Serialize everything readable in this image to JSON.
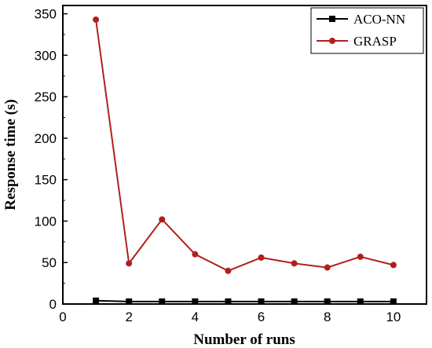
{
  "chart_data": {
    "type": "line",
    "xlabel": "Number of runs",
    "ylabel": "Response time (s)",
    "xlim": [
      0,
      11
    ],
    "ylim": [
      0,
      360
    ],
    "xticks": [
      0,
      2,
      4,
      6,
      8,
      10
    ],
    "yticks": [
      0,
      50,
      100,
      150,
      200,
      250,
      300,
      350
    ],
    "grid": false,
    "legend_position": "top-right",
    "x": [
      1,
      2,
      3,
      4,
      5,
      6,
      7,
      8,
      9,
      10
    ],
    "series": [
      {
        "name": "ACO-NN",
        "color": "#000000",
        "marker": "square",
        "values": [
          4,
          3,
          3,
          3,
          3,
          3,
          3,
          3,
          3,
          3
        ]
      },
      {
        "name": "GRASP",
        "color": "#b0201c",
        "marker": "circle",
        "values": [
          343,
          49,
          102,
          60,
          40,
          56,
          49,
          44,
          57,
          47
        ]
      }
    ]
  }
}
